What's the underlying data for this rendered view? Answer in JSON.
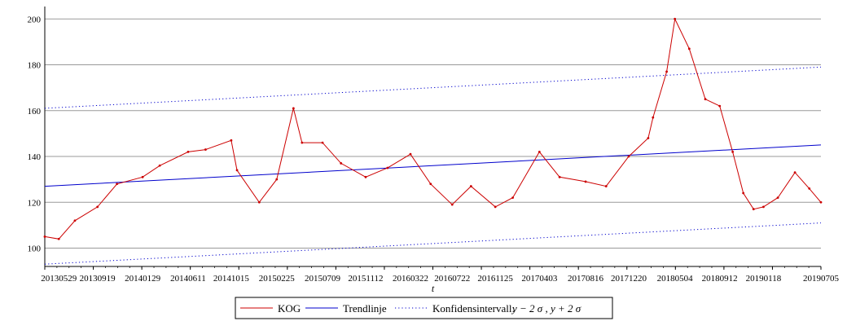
{
  "chart_data": {
    "type": "line",
    "title": "",
    "xlabel": "t",
    "ylabel": "",
    "ylim": [
      92,
      204
    ],
    "yticks": [
      100,
      120,
      140,
      160,
      180,
      200
    ],
    "grid": "horizontal",
    "legend_position": "bottom",
    "x_tick_labels": [
      "20130529",
      "20130919",
      "20140129",
      "20140611",
      "20141015",
      "20150225",
      "20150709",
      "20151112",
      "20160322",
      "20160722",
      "20161125",
      "20170403",
      "20170816",
      "20171220",
      "20180504",
      "20180912",
      "20190118",
      "20190705"
    ],
    "series": [
      {
        "name": "KOG",
        "color": "#cc0000",
        "style": "solid",
        "x": [
          "20130418",
          "20130529",
          "20130715",
          "20130919",
          "20131115",
          "20140129",
          "20140320",
          "20140611",
          "20140801",
          "20141015",
          "20141101",
          "20150105",
          "20150225",
          "20150415",
          "20150510",
          "20150709",
          "20150901",
          "20151112",
          "20160115",
          "20160322",
          "20160520",
          "20160722",
          "20160915",
          "20161125",
          "20170115",
          "20170403",
          "20170601",
          "20170816",
          "20171015",
          "20171220",
          "20180215",
          "20180301",
          "20180410",
          "20180504",
          "20180615",
          "20180801",
          "20180912",
          "20181020",
          "20181120",
          "20181220",
          "20190118",
          "20190301",
          "20190420",
          "20190601",
          "20190705"
        ],
        "values": [
          105,
          104,
          112,
          118,
          128,
          131,
          136,
          142,
          143,
          147,
          134,
          120,
          130,
          161,
          146,
          146,
          137,
          131,
          135,
          141,
          128,
          119,
          127,
          118,
          122,
          142,
          131,
          129,
          127,
          140,
          148,
          157,
          177,
          200,
          187,
          165,
          162,
          142,
          124,
          117,
          118,
          122,
          133,
          126,
          120
        ]
      },
      {
        "name": "Trendlinje",
        "color": "#0000cc",
        "style": "solid",
        "x": [
          "20130418",
          "20190705"
        ],
        "values": [
          127,
          145
        ]
      },
      {
        "name": "Konfidensintervall:",
        "color": "#0000cc",
        "style": "dotted",
        "x": [
          "20130418",
          "20190705"
        ],
        "upper": [
          161,
          179
        ],
        "lower": [
          93,
          111
        ]
      }
    ],
    "legend_formula": "y − 2 σ , y + 2 σ"
  }
}
